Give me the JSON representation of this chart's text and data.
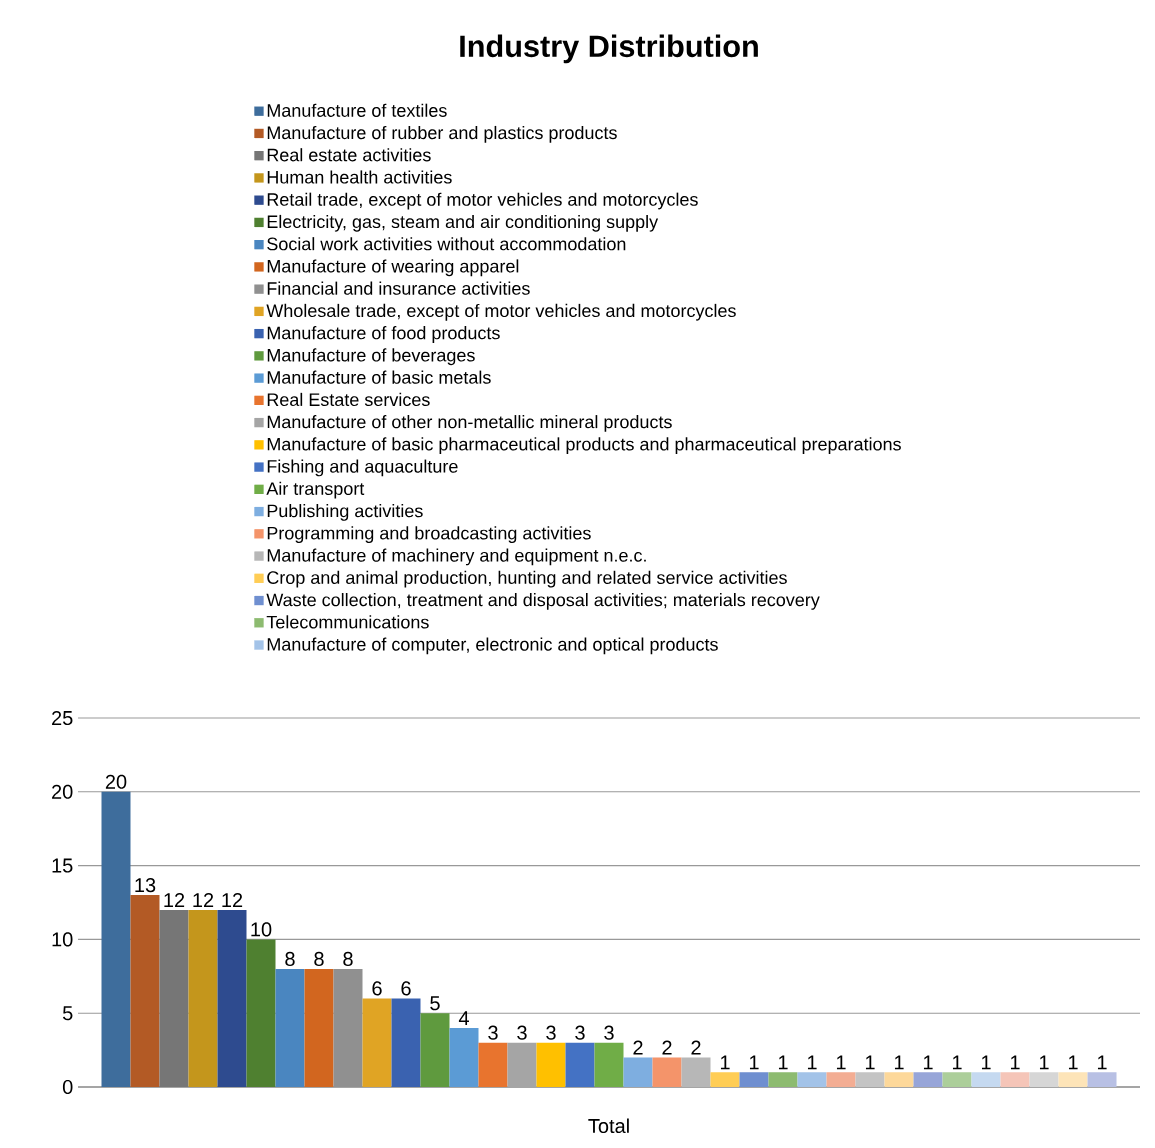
{
  "chart_data": {
    "type": "bar",
    "title": "Industry Distribution",
    "categories": [
      "Total"
    ],
    "ylim": [
      0,
      25
    ],
    "yticks": [
      0,
      5,
      10,
      15,
      20,
      25
    ],
    "grid": "y",
    "legend": "top",
    "data_labels": true,
    "series": [
      {
        "name": "Manufacture of textiles",
        "color": "#3e6d9c",
        "values": [
          20
        ]
      },
      {
        "name": "Manufacture of rubber and plastics products",
        "color": "#b35a25",
        "values": [
          13
        ]
      },
      {
        "name": "Real estate activities",
        "color": "#767676",
        "values": [
          12
        ]
      },
      {
        "name": "Human health activities",
        "color": "#c4961c",
        "values": [
          12
        ]
      },
      {
        "name": "Retail trade, except of motor vehicles and motorcycles",
        "color": "#2e4b8f",
        "values": [
          12
        ]
      },
      {
        "name": "Electricity, gas, steam and air conditioning supply",
        "color": "#4f8030",
        "values": [
          10
        ]
      },
      {
        "name": "Social work activities without accommodation",
        "color": "#4a86c0",
        "values": [
          8
        ]
      },
      {
        "name": "Manufacture of wearing apparel",
        "color": "#d2661f",
        "values": [
          8
        ]
      },
      {
        "name": "Financial and insurance activities",
        "color": "#909090",
        "values": [
          8
        ]
      },
      {
        "name": "Wholesale trade, except of motor vehicles and motorcycles",
        "color": "#e0a424",
        "values": [
          6
        ]
      },
      {
        "name": "Manufacture of food products",
        "color": "#3a62b0",
        "values": [
          6
        ]
      },
      {
        "name": "Manufacture of beverages",
        "color": "#5f9a3e",
        "values": [
          5
        ]
      },
      {
        "name": "Manufacture of basic metals",
        "color": "#5b9bd5",
        "values": [
          4
        ]
      },
      {
        "name": "Real Estate services",
        "color": "#e8742e",
        "values": [
          3
        ]
      },
      {
        "name": "Manufacture of other non-metallic mineral products",
        "color": "#a5a5a5",
        "values": [
          3
        ]
      },
      {
        "name": "Manufacture of basic pharmaceutical products and pharmaceutical preparations",
        "color": "#ffc000",
        "values": [
          3
        ]
      },
      {
        "name": "Fishing and aquaculture",
        "color": "#4472c4",
        "values": [
          3
        ]
      },
      {
        "name": "Air transport",
        "color": "#70ad47",
        "values": [
          3
        ]
      },
      {
        "name": "Publishing activities",
        "color": "#7eaee0",
        "values": [
          2
        ]
      },
      {
        "name": "Programming and broadcasting activities",
        "color": "#f4946a",
        "values": [
          2
        ]
      },
      {
        "name": "Manufacture of machinery and equipment n.e.c.",
        "color": "#b7b7b7",
        "values": [
          2
        ]
      },
      {
        "name": "Crop and animal production, hunting and related service activities",
        "color": "#ffcd55",
        "values": [
          1
        ]
      },
      {
        "name": "Waste collection, treatment and disposal activities; materials recovery",
        "color": "#6f8fd0",
        "values": [
          1
        ]
      },
      {
        "name": "Telecommunications",
        "color": "#8dbb70",
        "values": [
          1
        ]
      },
      {
        "name": "Manufacture of computer, electronic and optical products",
        "color": "#a3c3e8",
        "values": [
          1
        ]
      },
      {
        "color": "#f3ad93",
        "values": [
          1
        ]
      },
      {
        "color": "#c4c4c4",
        "values": [
          1
        ]
      },
      {
        "color": "#fdd89a",
        "values": [
          1
        ]
      },
      {
        "color": "#97a5d8",
        "values": [
          1
        ]
      },
      {
        "color": "#acce9a",
        "values": [
          1
        ]
      },
      {
        "color": "#c5d9f0",
        "values": [
          1
        ]
      },
      {
        "color": "#f5c5b8",
        "values": [
          1
        ]
      },
      {
        "color": "#d6d6d6",
        "values": [
          1
        ]
      },
      {
        "color": "#fde4b8",
        "values": [
          1
        ]
      },
      {
        "color": "#b8c0e4",
        "values": [
          1
        ]
      }
    ]
  }
}
